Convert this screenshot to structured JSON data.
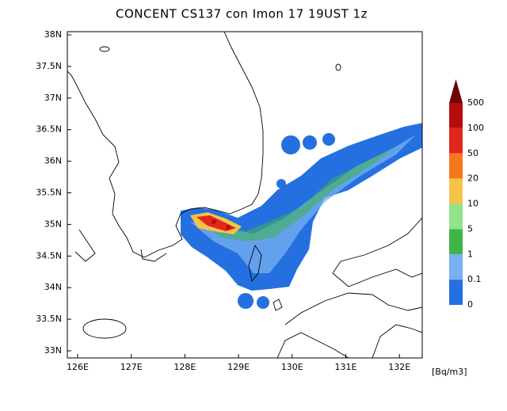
{
  "title": "CONCENT CS137 con Imon 17 19UST 1z",
  "map": {
    "lat_labels": [
      "38N",
      "37.5N",
      "37N",
      "36.5N",
      "36N",
      "35.5N",
      "35N",
      "34.5N",
      "34N",
      "33.5N",
      "33N"
    ],
    "lon_labels": [
      "126E",
      "127E",
      "128E",
      "129E",
      "130E",
      "131E",
      "132E"
    ]
  },
  "colorbar": {
    "levels": [
      "500",
      "100",
      "50",
      "20",
      "10",
      "5",
      "1",
      "0.1",
      "0"
    ],
    "colors": [
      "#b50d0d",
      "#e0271b",
      "#f5781f",
      "#f6c349",
      "#93e28c",
      "#3fb54a",
      "#79b1f2",
      "#2470e0"
    ],
    "top_color": "#6b0606",
    "unit": "[Bq/m3]"
  }
}
